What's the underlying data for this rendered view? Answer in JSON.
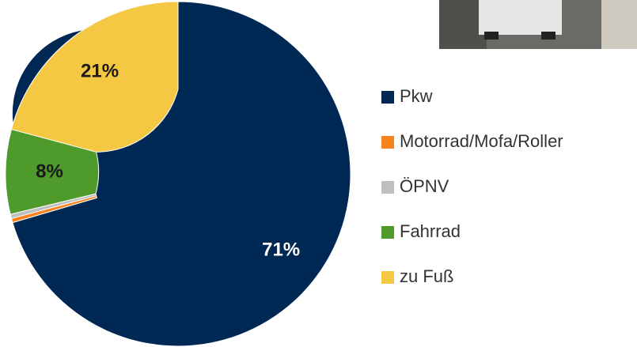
{
  "chart_data": {
    "type": "pie",
    "categories": [
      "Pkw",
      "Motorrad/Mofa/Roller",
      "ÖPNV",
      "Fahrrad",
      "zu Fuß"
    ],
    "values": [
      71,
      0.4,
      0.4,
      8,
      21
    ],
    "value_labels": [
      "71%",
      null,
      null,
      "8%",
      "21%"
    ],
    "colors": [
      "#002855",
      "#f7821e",
      "#bfbfbf",
      "#4e9a2a",
      "#f5c844"
    ],
    "donut": true,
    "legend": "right"
  }
}
